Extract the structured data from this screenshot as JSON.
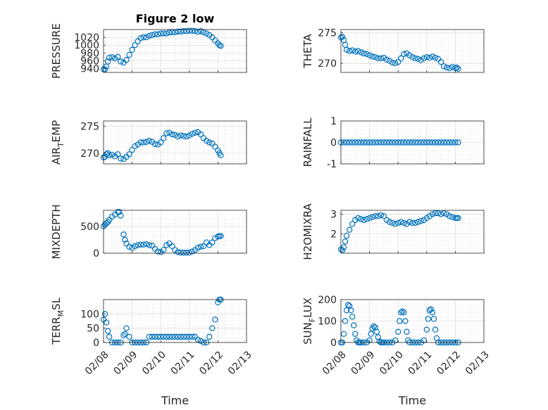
{
  "chart_data": [
    {
      "type": "scatter",
      "title": "Figure 2 low",
      "ylabel": "PRESSURE",
      "ylabel_sub": "",
      "ylabel_tail": "",
      "xlim": [
        0,
        5
      ],
      "ylim": [
        930,
        1040
      ],
      "yticks": [
        940,
        960,
        980,
        1000,
        1020
      ],
      "xticks": [
        0,
        1,
        2,
        3,
        4,
        5
      ],
      "xticklabels": [],
      "grid": true,
      "marker_color": "#0072BD",
      "x": [
        0,
        0.05,
        0.1,
        0.15,
        0.2,
        0.3,
        0.4,
        0.5,
        0.6,
        0.7,
        0.8,
        0.9,
        1.0,
        1.1,
        1.2,
        1.3,
        1.4,
        1.5,
        1.6,
        1.7,
        1.8,
        1.9,
        2.0,
        2.1,
        2.2,
        2.3,
        2.4,
        2.5,
        2.6,
        2.7,
        2.8,
        2.9,
        3.0,
        3.1,
        3.2,
        3.3,
        3.4,
        3.5,
        3.6,
        3.7,
        3.8,
        3.9,
        4.0,
        4.05,
        4.1
      ],
      "y": [
        938,
        938,
        945,
        958,
        968,
        969,
        966,
        970,
        958,
        955,
        962,
        975,
        988,
        1000,
        1010,
        1018,
        1020,
        1020,
        1024,
        1026,
        1028,
        1028,
        1030,
        1030,
        1030,
        1032,
        1033,
        1033,
        1035,
        1035,
        1036,
        1036,
        1037,
        1037,
        1036,
        1034,
        1036,
        1033,
        1030,
        1026,
        1020,
        1012,
        1005,
        1000,
        998
      ]
    },
    {
      "type": "scatter",
      "title": "",
      "ylabel": "THETA",
      "ylabel_sub": "",
      "ylabel_tail": "",
      "xlim": [
        0,
        5
      ],
      "ylim": [
        268.5,
        275.5
      ],
      "yticks": [
        270,
        275
      ],
      "xticks": [
        0,
        1,
        2,
        3,
        4,
        5
      ],
      "xticklabels": [],
      "grid": true,
      "marker_color": "#0072BD",
      "x": [
        0,
        0.05,
        0.1,
        0.15,
        0.2,
        0.3,
        0.4,
        0.5,
        0.6,
        0.7,
        0.8,
        0.9,
        1.0,
        1.1,
        1.2,
        1.3,
        1.4,
        1.5,
        1.6,
        1.7,
        1.8,
        1.9,
        2.0,
        2.1,
        2.2,
        2.3,
        2.4,
        2.5,
        2.6,
        2.7,
        2.8,
        2.9,
        3.0,
        3.1,
        3.2,
        3.3,
        3.4,
        3.5,
        3.6,
        3.7,
        3.8,
        3.9,
        4.0,
        4.05,
        4.1
      ],
      "y": [
        274.2,
        274.3,
        273.8,
        273.0,
        272.2,
        272.0,
        272.1,
        271.9,
        272.0,
        271.8,
        271.6,
        271.5,
        271.3,
        271.1,
        271.0,
        270.8,
        270.8,
        270.9,
        270.6,
        270.4,
        270.1,
        270.0,
        270.2,
        270.8,
        271.5,
        271.6,
        271.3,
        271.0,
        270.8,
        270.7,
        270.5,
        270.8,
        271.0,
        270.9,
        271.1,
        270.9,
        270.7,
        270.2,
        269.5,
        269.3,
        269.2,
        269.4,
        269.2,
        269.3,
        269.1
      ]
    },
    {
      "type": "scatter",
      "title": "",
      "ylabel": "AIR",
      "ylabel_sub": "T",
      "ylabel_tail": "EMP",
      "xlim": [
        0,
        5
      ],
      "ylim": [
        268,
        276
      ],
      "yticks": [
        270,
        275
      ],
      "xticks": [
        0,
        1,
        2,
        3,
        4,
        5
      ],
      "xticklabels": [],
      "grid": true,
      "marker_color": "#0072BD",
      "x": [
        0,
        0.05,
        0.1,
        0.15,
        0.2,
        0.3,
        0.4,
        0.5,
        0.6,
        0.7,
        0.8,
        0.9,
        1.0,
        1.1,
        1.2,
        1.3,
        1.4,
        1.5,
        1.6,
        1.7,
        1.8,
        1.9,
        2.0,
        2.1,
        2.2,
        2.3,
        2.4,
        2.5,
        2.6,
        2.7,
        2.8,
        2.9,
        3.0,
        3.1,
        3.2,
        3.3,
        3.4,
        3.5,
        3.6,
        3.7,
        3.8,
        3.9,
        4.0,
        4.05,
        4.1
      ],
      "y": [
        269.2,
        269.3,
        269.8,
        270.0,
        269.6,
        269.7,
        269.4,
        269.8,
        269.0,
        268.9,
        269.3,
        269.8,
        270.6,
        271.3,
        271.6,
        272.0,
        272.0,
        272.1,
        272.3,
        272.1,
        271.7,
        271.6,
        272.0,
        272.8,
        273.7,
        273.8,
        273.5,
        273.4,
        273.1,
        273.3,
        273.2,
        273.1,
        273.3,
        273.6,
        273.8,
        273.9,
        273.5,
        272.8,
        272.3,
        272.0,
        271.8,
        271.2,
        270.5,
        270.0,
        269.6
      ]
    },
    {
      "type": "scatter",
      "title": "",
      "ylabel": "RAINFALL",
      "ylabel_sub": "",
      "ylabel_tail": "",
      "xlim": [
        0,
        5
      ],
      "ylim": [
        -1,
        1
      ],
      "yticks": [
        -1,
        0,
        1
      ],
      "xticks": [
        0,
        1,
        2,
        3,
        4,
        5
      ],
      "xticklabels": [],
      "grid": true,
      "marker_color": "#0072BD",
      "x": [
        0,
        0.1,
        0.2,
        0.3,
        0.4,
        0.5,
        0.6,
        0.7,
        0.8,
        0.9,
        1.0,
        1.1,
        1.2,
        1.3,
        1.4,
        1.5,
        1.6,
        1.7,
        1.8,
        1.9,
        2.0,
        2.1,
        2.2,
        2.3,
        2.4,
        2.5,
        2.6,
        2.7,
        2.8,
        2.9,
        3.0,
        3.1,
        3.2,
        3.3,
        3.4,
        3.5,
        3.6,
        3.7,
        3.8,
        3.9,
        4.0,
        4.1
      ],
      "y": [
        0,
        0,
        0,
        0,
        0,
        0,
        0,
        0,
        0,
        0,
        0,
        0,
        0,
        0,
        0,
        0,
        0,
        0,
        0,
        0,
        0,
        0,
        0,
        0,
        0,
        0,
        0,
        0,
        0,
        0,
        0,
        0,
        0,
        0,
        0,
        0,
        0,
        0,
        0,
        0,
        0,
        0
      ]
    },
    {
      "type": "scatter",
      "title": "",
      "ylabel": "MIXDEPTH",
      "ylabel_sub": "",
      "ylabel_tail": "",
      "xlim": [
        0,
        5
      ],
      "ylim": [
        0,
        800
      ],
      "yticks": [
        0,
        500
      ],
      "xticks": [
        0,
        1,
        2,
        3,
        4,
        5
      ],
      "xticklabels": [],
      "grid": true,
      "marker_color": "#0072BD",
      "x": [
        0,
        0.05,
        0.1,
        0.15,
        0.2,
        0.3,
        0.4,
        0.5,
        0.55,
        0.6,
        0.7,
        0.75,
        0.8,
        0.9,
        1.0,
        1.1,
        1.2,
        1.3,
        1.4,
        1.5,
        1.6,
        1.7,
        1.8,
        1.9,
        2.0,
        2.1,
        2.2,
        2.3,
        2.4,
        2.5,
        2.6,
        2.7,
        2.8,
        2.9,
        3.0,
        3.1,
        3.2,
        3.3,
        3.4,
        3.5,
        3.6,
        3.7,
        3.8,
        3.9,
        4.0,
        4.05,
        4.1
      ],
      "y": [
        500,
        530,
        560,
        580,
        620,
        680,
        720,
        770,
        770,
        700,
        350,
        250,
        180,
        120,
        100,
        130,
        150,
        160,
        160,
        170,
        150,
        140,
        80,
        30,
        20,
        60,
        150,
        180,
        130,
        60,
        20,
        10,
        10,
        10,
        10,
        30,
        60,
        100,
        120,
        130,
        200,
        150,
        200,
        280,
        310,
        320,
        320
      ]
    },
    {
      "type": "scatter",
      "title": "",
      "ylabel": "H2OMIXRA",
      "ylabel_sub": "",
      "ylabel_tail": "",
      "xlim": [
        0,
        5
      ],
      "ylim": [
        1,
        3.2
      ],
      "yticks": [
        2,
        3
      ],
      "xticks": [
        0,
        1,
        2,
        3,
        4,
        5
      ],
      "xticklabels": [],
      "grid": true,
      "marker_color": "#0072BD",
      "x": [
        0,
        0.05,
        0.1,
        0.15,
        0.2,
        0.3,
        0.4,
        0.5,
        0.6,
        0.7,
        0.8,
        0.9,
        1.0,
        1.1,
        1.2,
        1.3,
        1.4,
        1.5,
        1.6,
        1.7,
        1.8,
        1.9,
        2.0,
        2.1,
        2.2,
        2.3,
        2.4,
        2.5,
        2.6,
        2.7,
        2.8,
        2.9,
        3.0,
        3.1,
        3.2,
        3.3,
        3.4,
        3.5,
        3.6,
        3.7,
        3.8,
        3.9,
        4.0,
        4.05,
        4.1
      ],
      "y": [
        1.2,
        1.15,
        1.3,
        1.6,
        1.9,
        2.2,
        2.5,
        2.7,
        2.8,
        2.75,
        2.7,
        2.75,
        2.8,
        2.85,
        2.9,
        2.9,
        2.95,
        2.9,
        2.7,
        2.6,
        2.55,
        2.5,
        2.55,
        2.6,
        2.55,
        2.5,
        2.6,
        2.55,
        2.55,
        2.6,
        2.65,
        2.7,
        2.8,
        2.9,
        3.0,
        3.05,
        3.05,
        3.0,
        3.05,
        3.0,
        2.9,
        2.85,
        2.8,
        2.8,
        2.8
      ]
    },
    {
      "type": "scatter",
      "title": "",
      "ylabel": "TERR",
      "ylabel_sub": "M",
      "ylabel_tail": "SL",
      "xlim": [
        0,
        5
      ],
      "ylim": [
        0,
        150
      ],
      "yticks": [
        0,
        50,
        100
      ],
      "xticks": [
        0,
        1,
        2,
        3,
        4,
        5
      ],
      "xticklabels": [
        "02/08",
        "02/09",
        "02/10",
        "02/11",
        "02/12",
        "02/13"
      ],
      "xlabel": "Time",
      "grid": true,
      "marker_color": "#0072BD",
      "x": [
        0,
        0.05,
        0.1,
        0.15,
        0.2,
        0.3,
        0.4,
        0.5,
        0.6,
        0.7,
        0.75,
        0.8,
        0.9,
        1.0,
        1.1,
        1.2,
        1.3,
        1.4,
        1.5,
        1.6,
        1.7,
        1.8,
        1.9,
        2.0,
        2.1,
        2.2,
        2.3,
        2.4,
        2.5,
        2.6,
        2.7,
        2.8,
        2.9,
        3.0,
        3.1,
        3.2,
        3.3,
        3.4,
        3.5,
        3.6,
        3.7,
        3.8,
        3.9,
        4.0,
        4.05,
        4.1
      ],
      "y": [
        80,
        100,
        70,
        40,
        20,
        0,
        0,
        0,
        0,
        25,
        30,
        50,
        20,
        0,
        0,
        0,
        0,
        0,
        0,
        20,
        20,
        20,
        20,
        20,
        20,
        20,
        20,
        20,
        20,
        20,
        20,
        20,
        20,
        20,
        20,
        20,
        10,
        5,
        0,
        0,
        20,
        50,
        80,
        140,
        150,
        150
      ]
    },
    {
      "type": "scatter",
      "title": "",
      "ylabel": "SUN",
      "ylabel_sub": "F",
      "ylabel_tail": "LUX",
      "xlim": [
        0,
        5
      ],
      "ylim": [
        0,
        200
      ],
      "yticks": [
        0,
        100,
        200
      ],
      "xticks": [
        0,
        1,
        2,
        3,
        4,
        5
      ],
      "xticklabels": [
        "02/08",
        "02/09",
        "02/10",
        "02/11",
        "02/12",
        "02/13"
      ],
      "xlabel": "Time",
      "grid": true,
      "marker_color": "#0072BD",
      "x": [
        0,
        0.05,
        0.1,
        0.15,
        0.2,
        0.25,
        0.3,
        0.35,
        0.4,
        0.45,
        0.5,
        0.55,
        0.6,
        0.65,
        0.7,
        0.8,
        0.9,
        1.0,
        1.05,
        1.1,
        1.15,
        1.2,
        1.25,
        1.3,
        1.35,
        1.4,
        1.45,
        1.5,
        1.6,
        1.7,
        1.8,
        1.9,
        2.0,
        2.05,
        2.1,
        2.15,
        2.2,
        2.25,
        2.3,
        2.35,
        2.4,
        2.5,
        2.6,
        2.7,
        2.8,
        2.9,
        3.0,
        3.05,
        3.1,
        3.15,
        3.2,
        3.25,
        3.3,
        3.35,
        3.4,
        3.5,
        3.6,
        3.7,
        3.8,
        3.9,
        4.0,
        4.1
      ],
      "y": [
        0,
        0,
        40,
        100,
        150,
        175,
        170,
        150,
        120,
        80,
        40,
        10,
        0,
        0,
        0,
        0,
        0,
        10,
        40,
        65,
        75,
        70,
        50,
        25,
        5,
        0,
        0,
        0,
        0,
        0,
        0,
        10,
        50,
        100,
        140,
        145,
        140,
        100,
        50,
        10,
        0,
        0,
        0,
        0,
        0,
        10,
        60,
        110,
        150,
        155,
        140,
        110,
        60,
        20,
        0,
        0,
        0,
        0,
        0,
        0,
        0,
        0
      ]
    }
  ]
}
